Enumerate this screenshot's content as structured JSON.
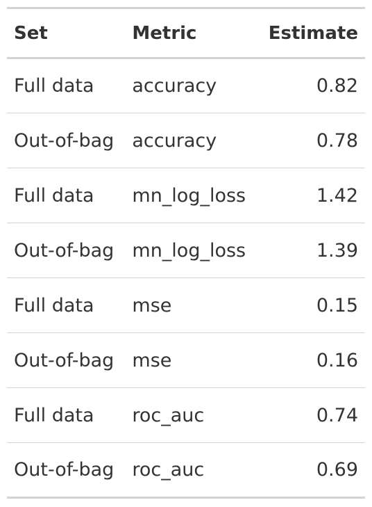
{
  "table": {
    "headers": [
      "Set",
      "Metric",
      "Estimate"
    ],
    "rows": [
      [
        "Full data",
        "accuracy",
        "0.82"
      ],
      [
        "Out-of-bag",
        "accuracy",
        "0.78"
      ],
      [
        "Full data",
        "mn_log_loss",
        "1.42"
      ],
      [
        "Out-of-bag",
        "mn_log_loss",
        "1.39"
      ],
      [
        "Full data",
        "mse",
        "0.15"
      ],
      [
        "Out-of-bag",
        "mse",
        "0.16"
      ],
      [
        "Full data",
        "roc_auc",
        "0.74"
      ],
      [
        "Out-of-bag",
        "roc_auc",
        "0.69"
      ]
    ]
  },
  "colors": {
    "text": "#333333",
    "rule": "#d3d3d3",
    "background": "#ffffff"
  }
}
